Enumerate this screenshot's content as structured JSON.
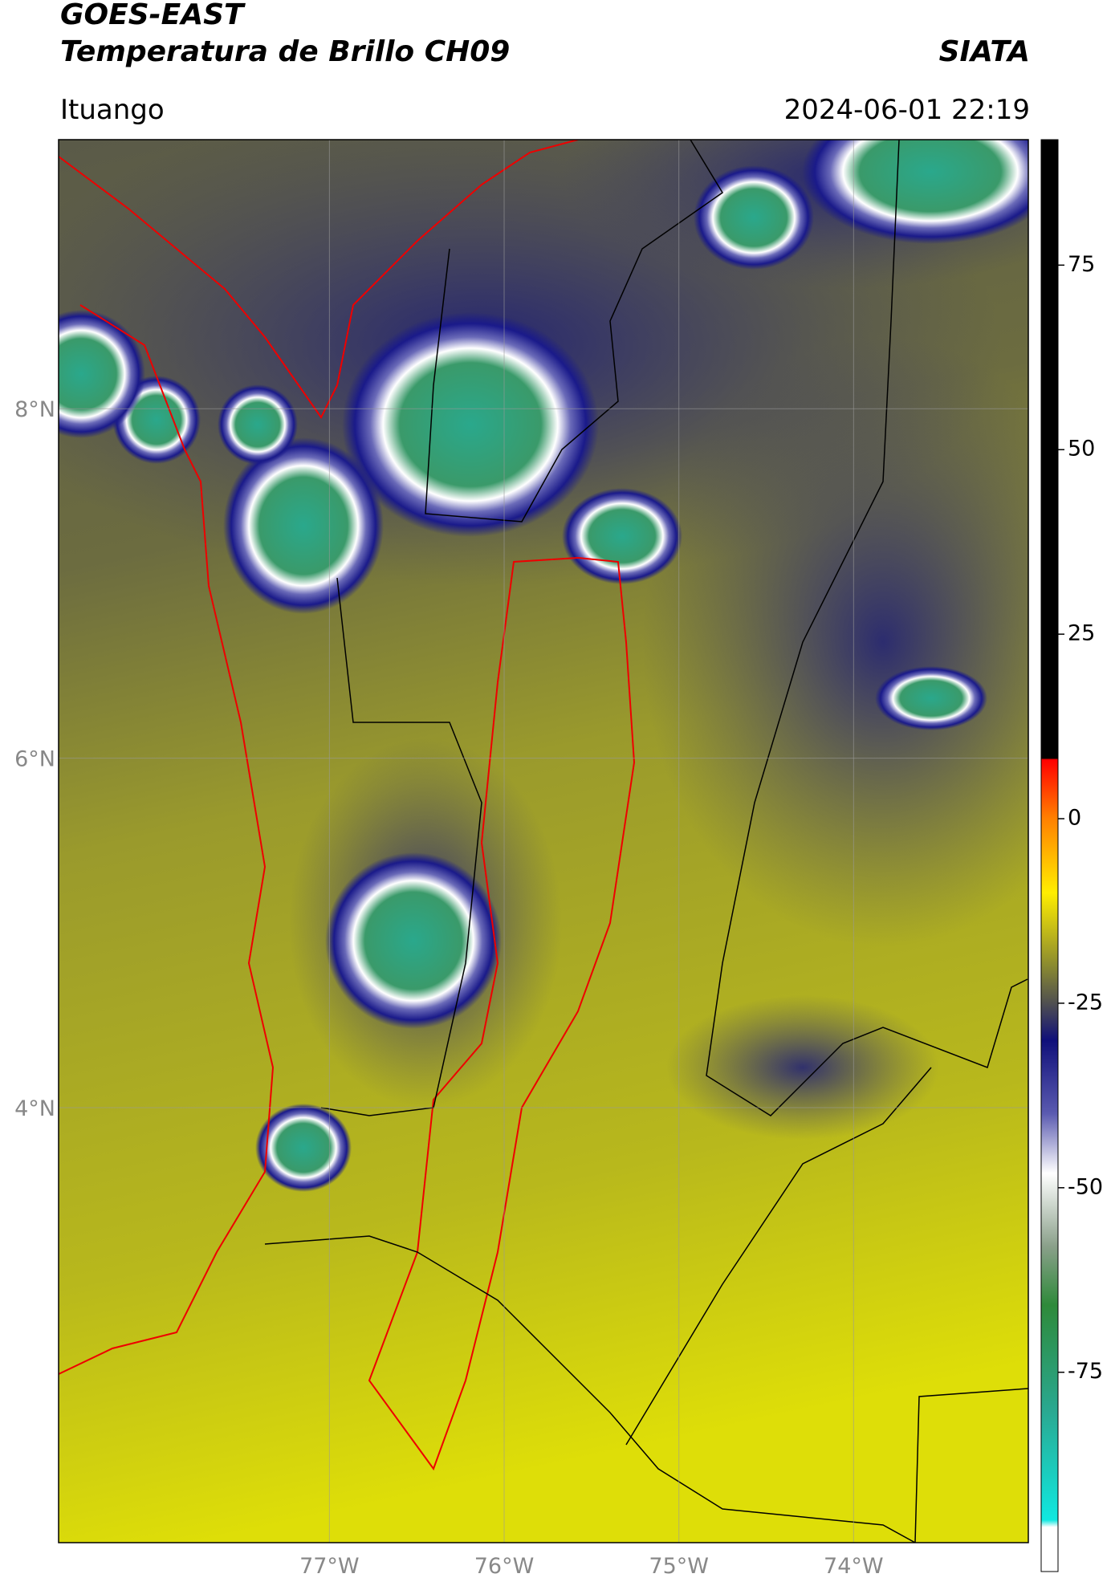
{
  "header": {
    "title": "GOES-EAST",
    "subtitle": "Temperatura de Brillo CH09",
    "source": "SIATA",
    "location": "Ituango",
    "datetime": "2024-06-01 22:19"
  },
  "map": {
    "lat_range": [
      1.51,
      9.54
    ],
    "lon_range": [
      -78.55,
      -73.0
    ],
    "lat_ticks": [
      {
        "value": 8,
        "label": "8°N"
      },
      {
        "value": 6,
        "label": "6°N"
      },
      {
        "value": 4,
        "label": "4°N"
      }
    ],
    "lon_ticks": [
      {
        "value": -77,
        "label": "77°W"
      },
      {
        "value": -76,
        "label": "76°W"
      },
      {
        "value": -75,
        "label": "75°W"
      },
      {
        "value": -74,
        "label": "74°W"
      }
    ]
  },
  "colorbar": {
    "range": [
      -102,
      92
    ],
    "ticks": [
      75,
      50,
      25,
      0,
      -25,
      -50,
      -75
    ]
  }
}
